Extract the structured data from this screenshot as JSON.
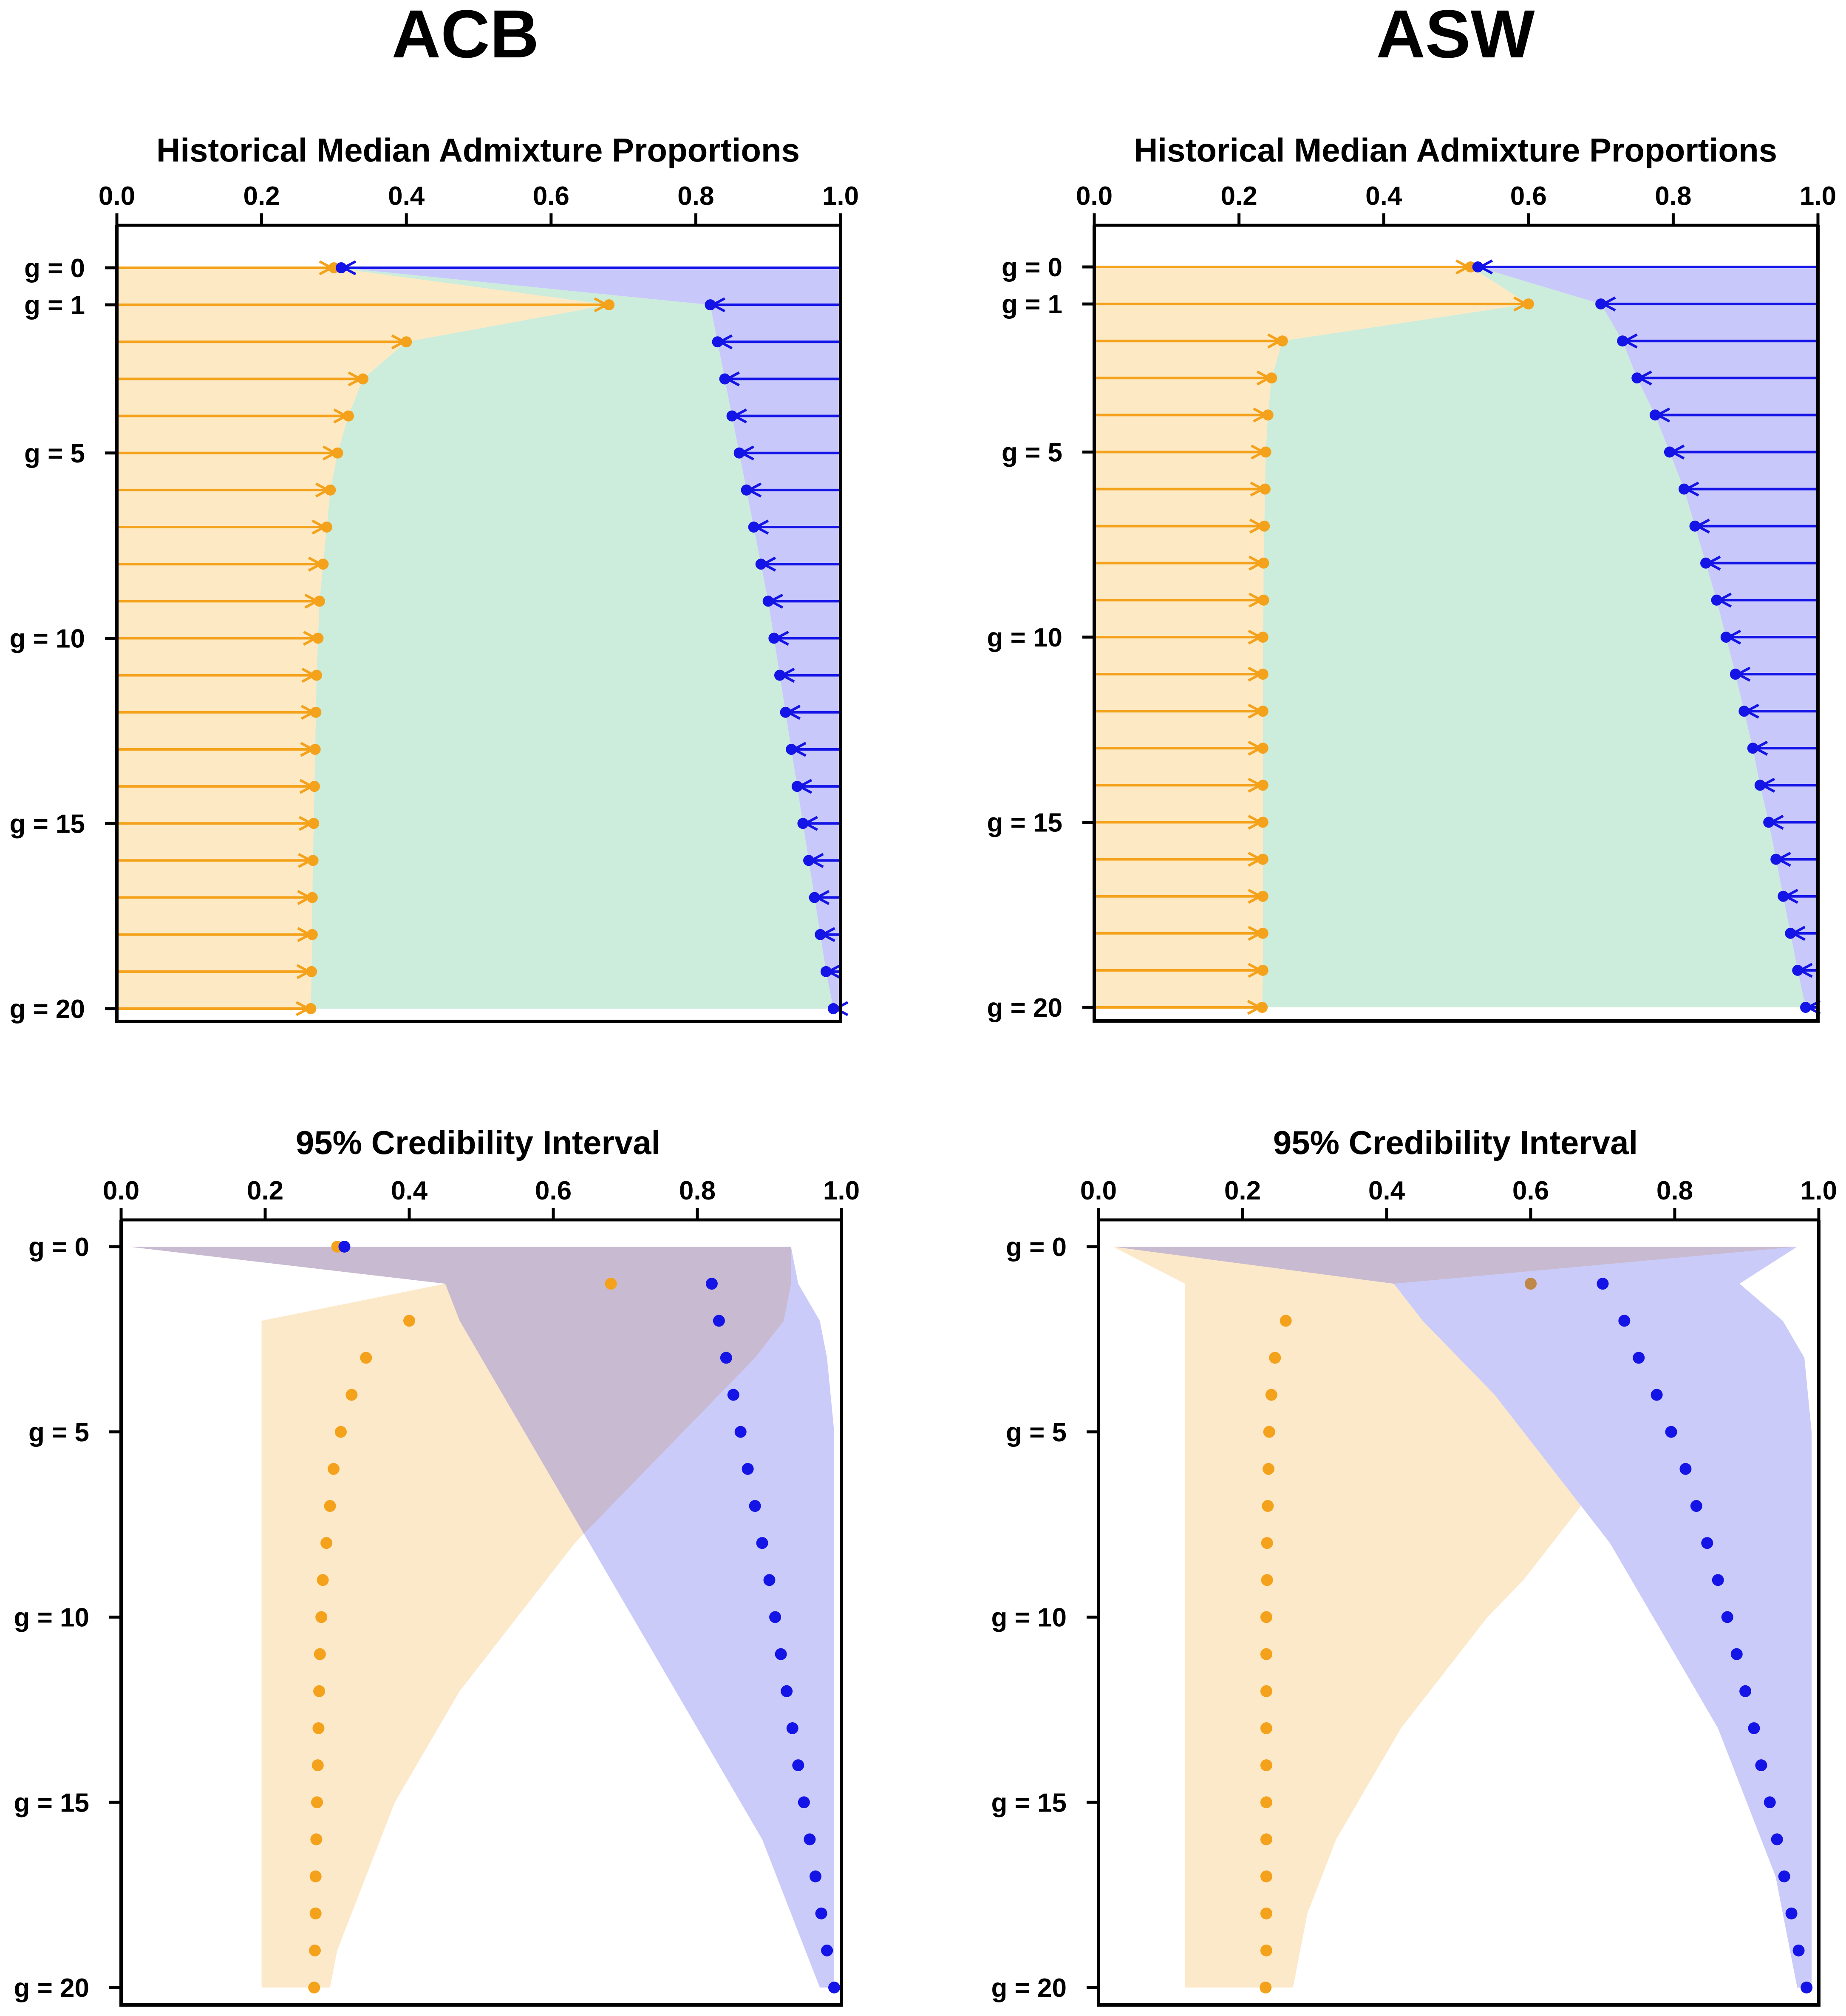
{
  "colors": {
    "orange": "#f4a21b",
    "blue": "#1414e6",
    "orange_fill": "#fde9c4",
    "blue_fill": "#c8c8fb",
    "green_fill": "#ccecdc",
    "purple_overlap": "#c6b6cd"
  },
  "icons": {
    "orange_marker": "circle-dot-with-right-arrow",
    "blue_marker": "circle-dot-with-left-arrow"
  },
  "populations": [
    {
      "name": "ACB",
      "panels": [
        {
          "title": "Historical Median Admixture Proportions",
          "kind": "median"
        },
        {
          "title": "95% Credibility Interval",
          "kind": "interval"
        }
      ]
    },
    {
      "name": "ASW",
      "panels": [
        {
          "title": "Historical Median Admixture Proportions",
          "kind": "median"
        },
        {
          "title": "95% Credibility Interval",
          "kind": "interval"
        }
      ]
    }
  ],
  "chart_data": [
    {
      "type": "line",
      "population": "ACB",
      "title": "Historical Median Admixture Proportions",
      "xlabel": "",
      "ylabel": "",
      "xlim": [
        0,
        1
      ],
      "ylim": [
        0,
        20
      ],
      "x_ticks": [
        "0.0",
        "0.2",
        "0.4",
        "0.6",
        "0.8",
        "1.0"
      ],
      "x_tick_values": [
        0,
        0.2,
        0.4,
        0.6,
        0.8,
        1.0
      ],
      "y_ticks": [
        "g = 0",
        "g = 1",
        "g = 5",
        "g = 10",
        "g = 15",
        "g = 20"
      ],
      "y_tick_values": [
        0,
        1,
        5,
        10,
        15,
        20
      ],
      "g": [
        0,
        1,
        2,
        3,
        4,
        5,
        6,
        7,
        8,
        9,
        10,
        11,
        12,
        13,
        14,
        15,
        16,
        17,
        18,
        19,
        20
      ],
      "series": [
        {
          "color": "#f4a21b",
          "values": [
            0.3,
            0.68,
            0.4,
            0.34,
            0.32,
            0.305,
            0.295,
            0.29,
            0.285,
            0.28,
            0.278,
            0.276,
            0.275,
            0.274,
            0.273,
            0.272,
            0.271,
            0.27,
            0.27,
            0.269,
            0.268
          ]
        },
        {
          "color": "#1414e6",
          "values": [
            0.31,
            0.82,
            0.83,
            0.84,
            0.85,
            0.86,
            0.87,
            0.88,
            0.89,
            0.9,
            0.908,
            0.916,
            0.924,
            0.932,
            0.94,
            0.948,
            0.956,
            0.964,
            0.972,
            0.98,
            0.99
          ]
        }
      ]
    },
    {
      "type": "line",
      "population": "ASW",
      "title": "Historical Median Admixture Proportions",
      "xlabel": "",
      "ylabel": "",
      "xlim": [
        0,
        1
      ],
      "ylim": [
        0,
        20
      ],
      "x_ticks": [
        "0.0",
        "0.2",
        "0.4",
        "0.6",
        "0.8",
        "1.0"
      ],
      "x_tick_values": [
        0,
        0.2,
        0.4,
        0.6,
        0.8,
        1.0
      ],
      "y_ticks": [
        "g = 0",
        "g = 1",
        "g = 5",
        "g = 10",
        "g = 15",
        "g = 20"
      ],
      "y_tick_values": [
        0,
        1,
        5,
        10,
        15,
        20
      ],
      "g": [
        0,
        1,
        2,
        3,
        4,
        5,
        6,
        7,
        8,
        9,
        10,
        11,
        12,
        13,
        14,
        15,
        16,
        17,
        18,
        19,
        20
      ],
      "series": [
        {
          "color": "#f4a21b",
          "values": [
            0.52,
            0.6,
            0.26,
            0.245,
            0.24,
            0.237,
            0.236,
            0.235,
            0.234,
            0.234,
            0.233,
            0.233,
            0.233,
            0.233,
            0.233,
            0.233,
            0.233,
            0.233,
            0.233,
            0.233,
            0.232
          ]
        },
        {
          "color": "#1414e6",
          "values": [
            0.53,
            0.7,
            0.73,
            0.75,
            0.775,
            0.795,
            0.815,
            0.83,
            0.845,
            0.86,
            0.873,
            0.886,
            0.898,
            0.91,
            0.92,
            0.932,
            0.942,
            0.952,
            0.962,
            0.972,
            0.983
          ]
        }
      ]
    },
    {
      "type": "area",
      "population": "ACB",
      "title": "95% Credibility Interval",
      "xlabel": "",
      "ylabel": "",
      "xlim": [
        0,
        1
      ],
      "ylim": [
        0,
        20
      ],
      "x_ticks": [
        "0.0",
        "0.2",
        "0.4",
        "0.6",
        "0.8",
        "1.0"
      ],
      "x_tick_values": [
        0,
        0.2,
        0.4,
        0.6,
        0.8,
        1.0
      ],
      "y_ticks": [
        "g = 0",
        "g = 5",
        "g = 10",
        "g = 15",
        "g = 20"
      ],
      "y_tick_values": [
        0,
        5,
        10,
        15,
        20
      ],
      "g": [
        0,
        1,
        2,
        3,
        4,
        5,
        6,
        7,
        8,
        9,
        10,
        11,
        12,
        13,
        14,
        15,
        16,
        17,
        18,
        19,
        20
      ],
      "series": [
        {
          "color": "#f4a21b",
          "values": [
            0.3,
            0.68,
            0.4,
            0.34,
            0.32,
            0.305,
            0.295,
            0.29,
            0.285,
            0.28,
            0.278,
            0.276,
            0.275,
            0.274,
            0.273,
            0.272,
            0.271,
            0.27,
            0.27,
            0.269,
            0.268
          ],
          "lower": [
            0.01,
            0.45,
            0.195,
            0.195,
            0.195,
            0.195,
            0.195,
            0.195,
            0.195,
            0.195,
            0.195,
            0.195,
            0.195,
            0.195,
            0.195,
            0.195,
            0.195,
            0.195,
            0.195,
            0.195,
            0.195
          ],
          "upper": [
            0.93,
            0.93,
            0.92,
            0.88,
            0.83,
            0.78,
            0.73,
            0.68,
            0.63,
            0.59,
            0.55,
            0.51,
            0.47,
            0.44,
            0.41,
            0.38,
            0.36,
            0.34,
            0.32,
            0.3,
            0.29
          ]
        },
        {
          "color": "#1414e6",
          "values": [
            0.31,
            0.82,
            0.83,
            0.84,
            0.85,
            0.86,
            0.87,
            0.88,
            0.89,
            0.9,
            0.908,
            0.916,
            0.924,
            0.932,
            0.94,
            0.948,
            0.956,
            0.964,
            0.972,
            0.98,
            0.99
          ],
          "lower": [
            0.01,
            0.45,
            0.47,
            0.5,
            0.53,
            0.56,
            0.59,
            0.62,
            0.65,
            0.68,
            0.71,
            0.74,
            0.77,
            0.8,
            0.83,
            0.86,
            0.89,
            0.91,
            0.93,
            0.95,
            0.97
          ],
          "upper": [
            0.93,
            0.94,
            0.97,
            0.98,
            0.985,
            0.99,
            0.99,
            0.99,
            0.99,
            0.99,
            0.99,
            0.99,
            0.99,
            0.99,
            0.99,
            0.99,
            0.99,
            0.99,
            0.99,
            0.99,
            0.99
          ]
        }
      ]
    },
    {
      "type": "area",
      "population": "ASW",
      "title": "95% Credibility Interval",
      "xlabel": "",
      "ylabel": "",
      "xlim": [
        0,
        1
      ],
      "ylim": [
        0,
        20
      ],
      "x_ticks": [
        "0.0",
        "0.2",
        "0.4",
        "0.6",
        "0.8",
        "1.0"
      ],
      "x_tick_values": [
        0,
        0.2,
        0.4,
        0.6,
        0.8,
        1.0
      ],
      "y_ticks": [
        "g = 0",
        "g = 5",
        "g = 10",
        "g = 15",
        "g = 20"
      ],
      "y_tick_values": [
        0,
        5,
        10,
        15,
        20
      ],
      "g": [
        0,
        1,
        2,
        3,
        4,
        5,
        6,
        7,
        8,
        9,
        10,
        11,
        12,
        13,
        14,
        15,
        16,
        17,
        18,
        19,
        20
      ],
      "series": [
        {
          "color": "#f4a21b",
          "values": [
            null,
            0.6,
            0.26,
            0.245,
            0.24,
            0.237,
            0.236,
            0.235,
            0.234,
            0.234,
            0.233,
            0.233,
            0.233,
            0.233,
            0.233,
            0.233,
            0.233,
            0.233,
            0.233,
            0.233,
            0.232
          ],
          "lower": [
            0.02,
            0.12,
            0.12,
            0.12,
            0.12,
            0.12,
            0.12,
            0.12,
            0.12,
            0.12,
            0.12,
            0.12,
            0.12,
            0.12,
            0.12,
            0.12,
            0.12,
            0.12,
            0.12,
            0.12,
            0.12
          ],
          "upper": [
            0.97,
            0.41,
            0.45,
            0.5,
            0.55,
            0.59,
            0.63,
            0.67,
            0.63,
            0.59,
            0.54,
            0.5,
            0.46,
            0.42,
            0.39,
            0.36,
            0.33,
            0.31,
            0.29,
            0.28,
            0.27
          ]
        },
        {
          "color": "#1414e6",
          "values": [
            null,
            0.7,
            0.73,
            0.75,
            0.775,
            0.795,
            0.815,
            0.83,
            0.845,
            0.86,
            0.873,
            0.886,
            0.898,
            0.91,
            0.92,
            0.932,
            0.942,
            0.952,
            0.962,
            0.972,
            0.983
          ],
          "lower": [
            0.02,
            0.41,
            0.45,
            0.5,
            0.55,
            0.59,
            0.63,
            0.67,
            0.71,
            0.74,
            0.77,
            0.8,
            0.83,
            0.86,
            0.88,
            0.9,
            0.92,
            0.94,
            0.95,
            0.96,
            0.97
          ],
          "upper": [
            0.97,
            0.89,
            0.95,
            0.98,
            0.985,
            0.99,
            0.99,
            0.99,
            0.99,
            0.99,
            0.99,
            0.99,
            0.99,
            0.99,
            0.99,
            0.99,
            0.99,
            0.99,
            0.99,
            0.99,
            0.99
          ]
        }
      ]
    }
  ]
}
